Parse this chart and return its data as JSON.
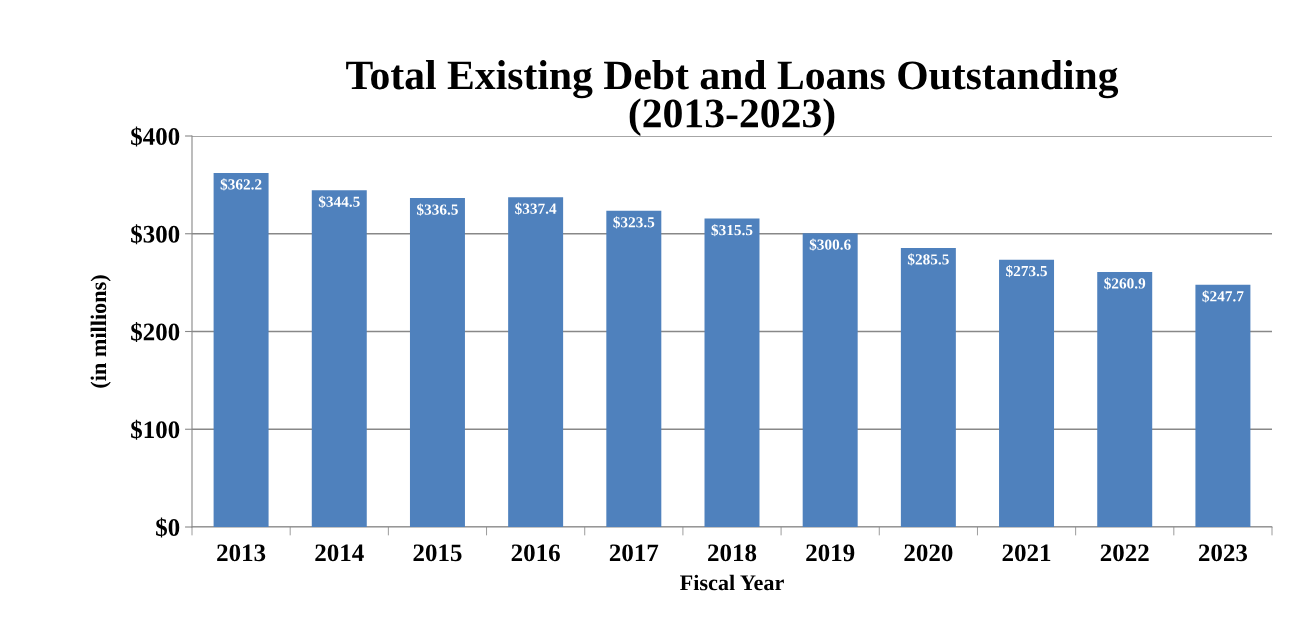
{
  "chart_data": {
    "type": "bar",
    "title": "Total Existing Debt and Loans Outstanding\n(2013-2023)",
    "xlabel": "Fiscal Year",
    "ylabel": "(in millions)",
    "categories": [
      "2013",
      "2014",
      "2015",
      "2016",
      "2017",
      "2018",
      "2019",
      "2020",
      "2021",
      "2022",
      "2023"
    ],
    "values": [
      362.2,
      344.5,
      336.5,
      337.4,
      323.5,
      315.5,
      300.6,
      285.5,
      273.5,
      260.9,
      247.7
    ],
    "value_labels": [
      "$362.2",
      "$344.5",
      "$336.5",
      "$337.4",
      "$323.5",
      "$315.5",
      "$300.6",
      "$285.5",
      "$273.5",
      "$260.9",
      "$247.7"
    ],
    "color": "#4f81bd",
    "ylim": [
      0,
      400
    ],
    "yticks": [
      {
        "value": 0,
        "label": "$0"
      },
      {
        "value": 100,
        "label": "$100"
      },
      {
        "value": 200,
        "label": "$200"
      },
      {
        "value": 300,
        "label": "$300"
      },
      {
        "value": 400,
        "label": "$400"
      }
    ],
    "grid": "y",
    "legend": false
  }
}
